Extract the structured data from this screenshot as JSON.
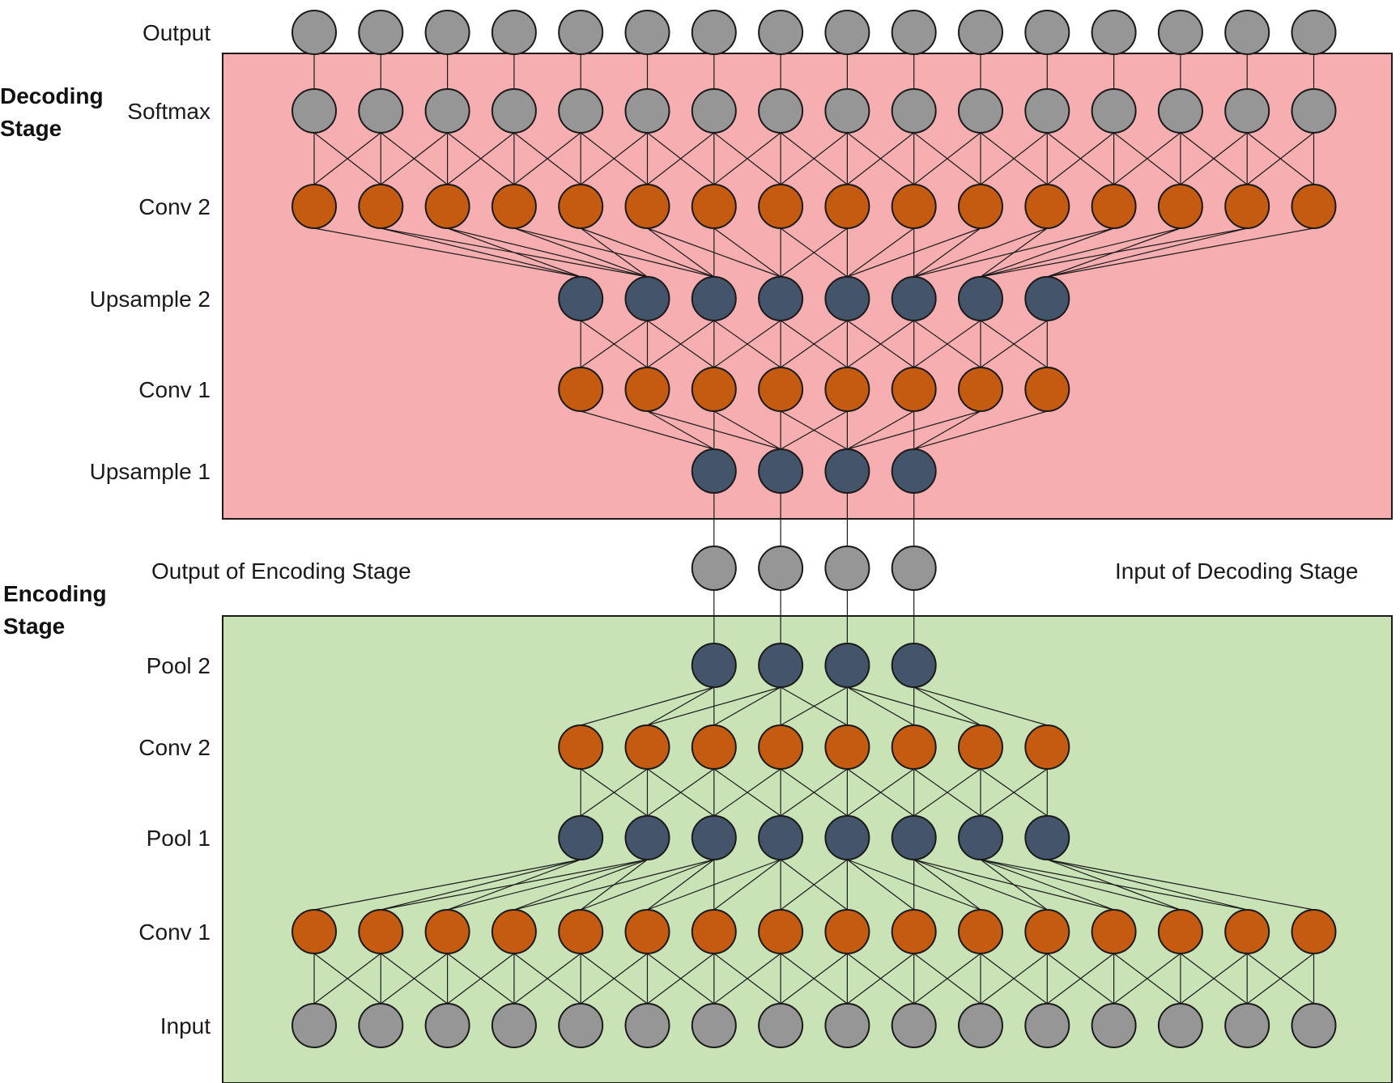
{
  "stages": {
    "decoding": {
      "title_line1": "Decoding",
      "title_line2": "Stage",
      "fill": "#f7aeb1"
    },
    "encoding": {
      "title_line1": "Encoding",
      "title_line2": "Stage",
      "fill": "#c9e3b7"
    }
  },
  "colors": {
    "gray": "#969696",
    "orange": "#c55a11",
    "blue": "#44546a",
    "edge": "#1a1a1a"
  },
  "side_labels": {
    "left": "Output of Encoding Stage",
    "right": "Input of Decoding Stage"
  },
  "layers": [
    {
      "id": "output",
      "label": "Output",
      "count": 16,
      "color": "gray"
    },
    {
      "id": "softmax",
      "label": "Softmax",
      "count": 16,
      "color": "gray"
    },
    {
      "id": "dec-conv2",
      "label": "Conv 2",
      "count": 16,
      "color": "orange"
    },
    {
      "id": "upsample2",
      "label": "Upsample 2",
      "count": 8,
      "color": "blue"
    },
    {
      "id": "dec-conv1",
      "label": "Conv 1",
      "count": 8,
      "color": "orange"
    },
    {
      "id": "upsample1",
      "label": "Upsample 1",
      "count": 4,
      "color": "blue"
    },
    {
      "id": "bottleneck",
      "label": "",
      "count": 4,
      "color": "gray"
    },
    {
      "id": "pool2",
      "label": "Pool 2",
      "count": 4,
      "color": "blue"
    },
    {
      "id": "enc-conv2",
      "label": "Conv 2",
      "count": 8,
      "color": "orange"
    },
    {
      "id": "pool1",
      "label": "Pool 1",
      "count": 8,
      "color": "blue"
    },
    {
      "id": "enc-conv1",
      "label": "Conv 1",
      "count": 16,
      "color": "orange"
    },
    {
      "id": "input",
      "label": "Input",
      "count": 16,
      "color": "gray"
    }
  ],
  "connections": [
    {
      "from": "output",
      "to": "softmax",
      "type": "one-to-one"
    },
    {
      "from": "softmax",
      "to": "dec-conv2",
      "type": "conv3"
    },
    {
      "from": "dec-conv2",
      "to": "upsample2",
      "type": "fan-in-4"
    },
    {
      "from": "upsample2",
      "to": "dec-conv1",
      "type": "conv3"
    },
    {
      "from": "dec-conv1",
      "to": "upsample1",
      "type": "fan-in-4"
    },
    {
      "from": "upsample1",
      "to": "bottleneck",
      "type": "one-to-one"
    },
    {
      "from": "bottleneck",
      "to": "pool2",
      "type": "one-to-one"
    },
    {
      "from": "pool2",
      "to": "enc-conv2",
      "type": "fan-in-4"
    },
    {
      "from": "enc-conv2",
      "to": "pool1",
      "type": "conv3"
    },
    {
      "from": "pool1",
      "to": "enc-conv1",
      "type": "fan-in-4"
    },
    {
      "from": "enc-conv1",
      "to": "input",
      "type": "conv3"
    }
  ]
}
